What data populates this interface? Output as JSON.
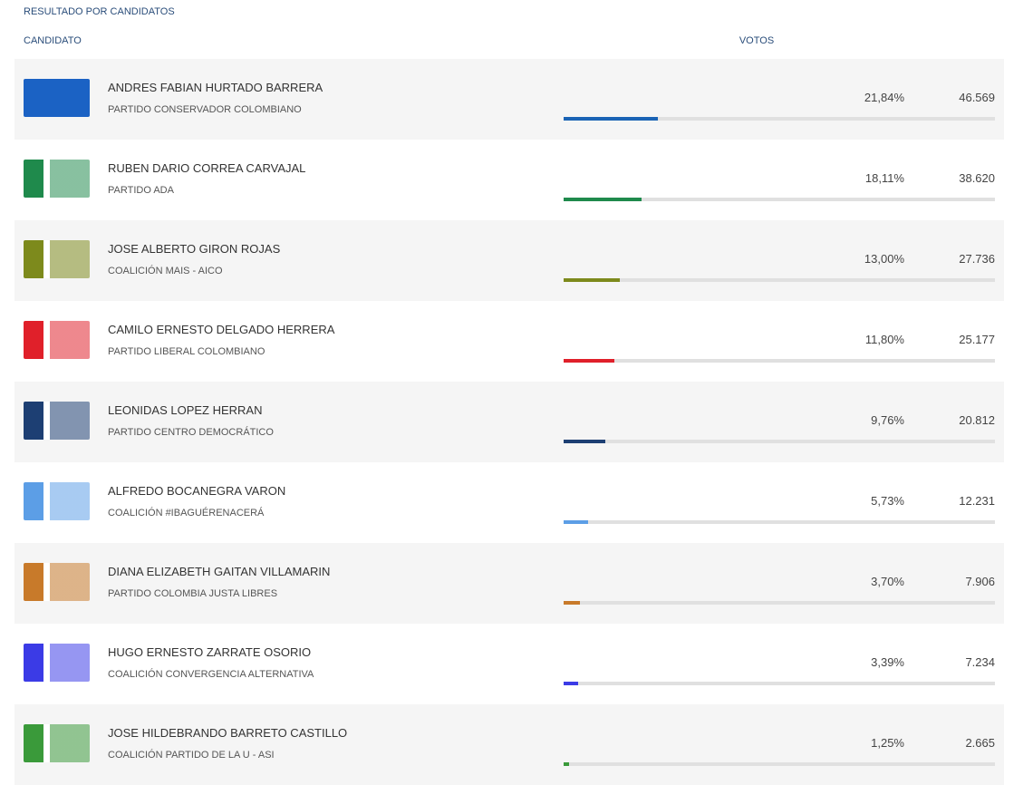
{
  "header": {
    "title": "RESULTADO POR CANDIDATOS",
    "candidate_column": "CANDIDATO",
    "votes_column": "VOTOS"
  },
  "rows": [
    {
      "name": "ANDRES FABIAN HURTADO BARRERA",
      "party": "PARTIDO CONSERVADOR COLOMBIANO",
      "percent": 21.84,
      "percent_label": "21,84%",
      "votes": "46.569",
      "color": "#1a63b5"
    },
    {
      "name": "RUBEN DARIO CORREA CARVAJAL",
      "party": "PARTIDO ADA",
      "percent": 18.11,
      "percent_label": "18,11%",
      "votes": "38.620",
      "color": "#1f8a4c"
    },
    {
      "name": "JOSE ALBERTO GIRON ROJAS",
      "party": "COALICIÓN MAIS - AICO",
      "percent": 13.0,
      "percent_label": "13,00%",
      "votes": "27.736",
      "color": "#7d8a1c"
    },
    {
      "name": "CAMILO ERNESTO DELGADO HERRERA",
      "party": "PARTIDO LIBERAL COLOMBIANO",
      "percent": 11.8,
      "percent_label": "11,80%",
      "votes": "25.177",
      "color": "#e0202a"
    },
    {
      "name": "LEONIDAS LOPEZ HERRAN",
      "party": "PARTIDO CENTRO DEMOCRÁTICO",
      "percent": 9.76,
      "percent_label": "9,76%",
      "votes": "20.812",
      "color": "#1d3f73"
    },
    {
      "name": "ALFREDO BOCANEGRA VARON",
      "party": "COALICIÓN #IBAGUÉRENACERÁ",
      "percent": 5.73,
      "percent_label": "5,73%",
      "votes": "12.231",
      "color": "#5c9ee6"
    },
    {
      "name": "DIANA ELIZABETH GAITAN VILLAMARIN",
      "party": "PARTIDO COLOMBIA JUSTA LIBRES",
      "percent": 3.7,
      "percent_label": "3,70%",
      "votes": "7.906",
      "color": "#c87a2a"
    },
    {
      "name": "HUGO ERNESTO ZARRATE OSORIO",
      "party": "COALICIÓN CONVERGENCIA ALTERNATIVA",
      "percent": 3.39,
      "percent_label": "3,39%",
      "votes": "7.234",
      "color": "#3b3be6"
    },
    {
      "name": "JOSE HILDEBRANDO BARRETO CASTILLO",
      "party": "COALICIÓN PARTIDO DE LA U - ASI",
      "percent": 1.25,
      "percent_label": "1,25%",
      "votes": "2.665",
      "color": "#3a9a3a"
    }
  ]
}
